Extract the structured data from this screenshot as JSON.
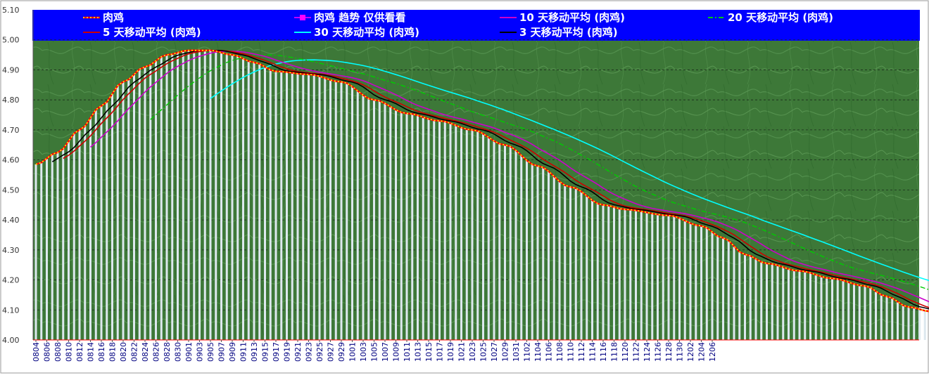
{
  "chart_data": {
    "type": "line",
    "title": "",
    "xlabel": "",
    "ylabel": "",
    "ylim": [
      4.0,
      5.1
    ],
    "y_ticks": [
      "4.00",
      "4.10",
      "4.20",
      "4.30",
      "4.40",
      "4.50",
      "4.60",
      "4.70",
      "4.80",
      "4.90",
      "5.00",
      "5.10"
    ],
    "x_tick_labels": [
      "0804",
      "0806",
      "0808",
      "0810",
      "0812",
      "0814",
      "0816",
      "0818",
      "0820",
      "0822",
      "0824",
      "0826",
      "0828",
      "0830",
      "0901",
      "0903",
      "0905",
      "0907",
      "0909",
      "0911",
      "0913",
      "0915",
      "0917",
      "0919",
      "0921",
      "0923",
      "0925",
      "0927",
      "0929",
      "1001",
      "1003",
      "1005",
      "1007",
      "1009",
      "1011",
      "1013",
      "1015",
      "1017",
      "1019",
      "1021",
      "1023",
      "1025",
      "1027",
      "1029",
      "1031",
      "1102",
      "1104",
      "1106",
      "1108",
      "1110",
      "1112",
      "1114",
      "1116",
      "1118",
      "1120",
      "1122",
      "1124",
      "1126",
      "1128",
      "1130",
      "1202",
      "1204",
      "1206"
    ],
    "grid": "horizontal dashed",
    "legend_position": "top",
    "background": "green texture plot area, blue legend band",
    "colors": {
      "legend_bg": "#0000ff",
      "plot_bg": "#3f7a3a",
      "bars": "#dde8ee",
      "main": "#ff0000",
      "main_dots": "#ffff00",
      "ma3": "#000000",
      "ma5": "#cc0000",
      "ma10": "#cc00cc",
      "ma20": "#00cc00",
      "ma30": "#00ffff"
    },
    "legend": [
      {
        "name": "肉鸡",
        "color": "#ff0000",
        "style": "main"
      },
      {
        "name": "肉鸡 趋势 仅供看看",
        "color": "#ff00ff",
        "style": "square"
      },
      {
        "name": "10 天移动平均 (肉鸡)",
        "color": "#cc00cc",
        "style": "line"
      },
      {
        "name": "20 天移动平均 (肉鸡)",
        "color": "#00cc00",
        "style": "dashdot"
      },
      {
        "name": "5 天移动平均 (肉鸡)",
        "color": "#cc0000",
        "style": "line"
      },
      {
        "name": "30 天移动平均 (肉鸡)",
        "color": "#00ffff",
        "style": "line"
      },
      {
        "name": "3 天移动平均 (肉鸡)",
        "color": "#000000",
        "style": "line"
      }
    ],
    "price_keypoints": [
      [
        0,
        4.585
      ],
      [
        4,
        4.625
      ],
      [
        8,
        4.7
      ],
      [
        12,
        4.78
      ],
      [
        16,
        4.86
      ],
      [
        20,
        4.91
      ],
      [
        24,
        4.95
      ],
      [
        28,
        4.965
      ],
      [
        32,
        4.965
      ],
      [
        36,
        4.95
      ],
      [
        40,
        4.925
      ],
      [
        44,
        4.895
      ],
      [
        50,
        4.885
      ],
      [
        56,
        4.86
      ],
      [
        62,
        4.8
      ],
      [
        68,
        4.755
      ],
      [
        74,
        4.73
      ],
      [
        80,
        4.7
      ],
      [
        86,
        4.65
      ],
      [
        92,
        4.58
      ],
      [
        98,
        4.51
      ],
      [
        104,
        4.45
      ],
      [
        108,
        4.435
      ],
      [
        116,
        4.415
      ],
      [
        122,
        4.38
      ],
      [
        126,
        4.34
      ],
      [
        130,
        4.285
      ],
      [
        134,
        4.255
      ],
      [
        140,
        4.23
      ],
      [
        146,
        4.205
      ],
      [
        152,
        4.18
      ],
      [
        156,
        4.145
      ],
      [
        160,
        4.11
      ],
      [
        164,
        4.095
      ]
    ]
  }
}
